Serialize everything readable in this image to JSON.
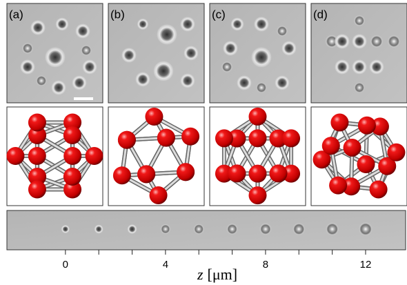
{
  "panels": [
    {
      "label": "(a)"
    },
    {
      "label": "(b)"
    },
    {
      "label": "(c)"
    },
    {
      "label": "(d)"
    }
  ],
  "z_axis": {
    "variable": "z",
    "unit": "[μm]",
    "xlim": [
      -2.34,
      13.6
    ],
    "xticks": [
      0,
      4,
      8,
      12
    ],
    "minor_ticks": [
      1.333,
      2.667,
      5.333,
      6.667,
      9.333,
      10.667
    ]
  }
}
